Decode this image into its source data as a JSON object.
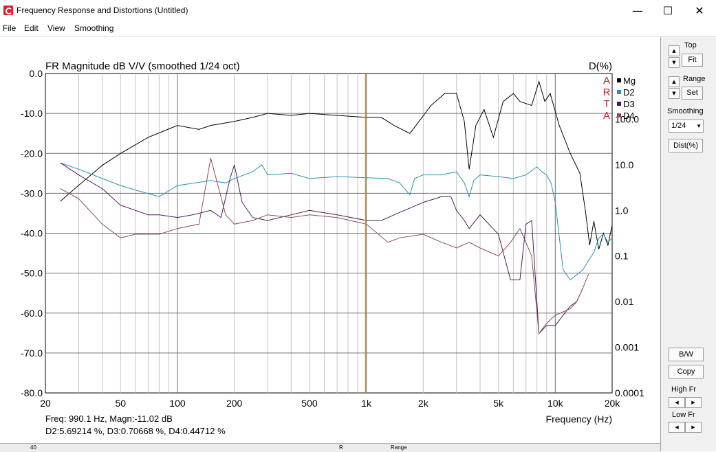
{
  "window": {
    "title": "Frequency Response and Distortions (Untitled)",
    "controls": {
      "minimize": "—",
      "maximize": "☐",
      "close": "✕"
    }
  },
  "menu": [
    "File",
    "Edit",
    "View",
    "Smoothing"
  ],
  "panel": {
    "top_label": "Top",
    "fit_label": "Fit",
    "range_label": "Range",
    "set_label": "Set",
    "smoothing_label": "Smoothing",
    "smoothing_value": "1/24",
    "dist_label": "Dist(%)",
    "bw_label": "B/W",
    "copy_label": "Copy",
    "high_fr_label": "High Fr",
    "low_fr_label": "Low Fr"
  },
  "status": {
    "line1": "Freq: 990.1 Hz, Magn:-11.02 dB",
    "line2": "D2:5.69214 %, D3:0.70668 %, D4:0.44712 %"
  },
  "bottom_strip": {
    "left": "40",
    "mid": "R",
    "right": "Range"
  },
  "colors": {
    "mg": "#000000",
    "d2": "#2a90b5",
    "d3": "#4a1a55",
    "d4": "#8a4a5a",
    "cursor": "#b8a000",
    "watermark": "#b02a2a"
  },
  "chart_data": {
    "type": "line",
    "title": "FR Magnitude dB V/V (smoothed 1/24 oct)",
    "xlabel": "Frequency (Hz)",
    "ylabel_right": "D(%)",
    "xscale": "log",
    "xlim": [
      20,
      20000
    ],
    "ylim": [
      -80,
      0
    ],
    "right_scale": "log",
    "right_lim": [
      0.0001,
      1000
    ],
    "x_ticks": [
      "20",
      "50",
      "100",
      "200",
      "500",
      "1k",
      "2k",
      "5k",
      "10k",
      "20k"
    ],
    "y_ticks": [
      "0.0",
      "-10.0",
      "-20.0",
      "-30.0",
      "-40.0",
      "-50.0",
      "-60.0",
      "-70.0",
      "-80.0"
    ],
    "right_ticks": [
      "100.0",
      "10.0",
      "1.0",
      "0.1",
      "0.01",
      "0.001",
      "0.0001"
    ],
    "watermark": [
      "A",
      "R",
      "T",
      "A"
    ],
    "cursor_freq": 990.1,
    "legend_position": "top-right",
    "series": [
      {
        "name": "Mg",
        "unit": "dB",
        "x": [
          24,
          30,
          40,
          50,
          70,
          100,
          130,
          150,
          200,
          250,
          300,
          400,
          500,
          700,
          1000,
          1200,
          1400,
          1700,
          1900,
          2200,
          2600,
          3000,
          3300,
          3500,
          3800,
          4200,
          4700,
          5300,
          6000,
          6500,
          7500,
          8200,
          8800,
          9400,
          10500,
          12000,
          13500,
          14500,
          15200,
          16000,
          17000,
          18000,
          19000,
          20000
        ],
        "values": [
          -32,
          -28,
          -23,
          -20,
          -16,
          -13,
          -14,
          -13,
          -12,
          -11,
          -10,
          -10.5,
          -10,
          -10.5,
          -11,
          -11,
          -13,
          -15,
          -12,
          -8,
          -5,
          -5,
          -12,
          -24,
          -13,
          -9,
          -16,
          -7,
          -5,
          -7,
          -8,
          -2,
          -7,
          -5,
          -13,
          -20,
          -25,
          -35,
          -43,
          -37,
          -44,
          -40,
          -43,
          -38
        ]
      },
      {
        "name": "D2",
        "unit": "%",
        "x": [
          24,
          30,
          40,
          50,
          60,
          80,
          100,
          150,
          180,
          200,
          250,
          280,
          300,
          400,
          500,
          700,
          1000,
          1300,
          1500,
          1700,
          1800,
          2000,
          2500,
          3000,
          3300,
          3500,
          3700,
          4000,
          5000,
          6000,
          7000,
          8000,
          8500,
          9000,
          9500,
          10000,
          11000,
          12000,
          14000,
          15000,
          16000,
          17000,
          18000,
          19000,
          20000
        ],
        "values": [
          11,
          8,
          5,
          3.5,
          2.8,
          2,
          3.5,
          4.5,
          4,
          5,
          7,
          10,
          6,
          6.5,
          5,
          5.5,
          5.2,
          5,
          4,
          2.2,
          5,
          6,
          6,
          7,
          4,
          2,
          4.5,
          6,
          5.5,
          5,
          6,
          9,
          7,
          6,
          4,
          1.5,
          0.05,
          0.03,
          0.05,
          0.08,
          0.12,
          0.25,
          0.3,
          0.2,
          0.25
        ]
      },
      {
        "name": "D3",
        "unit": "%",
        "x": [
          24,
          30,
          40,
          50,
          60,
          70,
          80,
          100,
          120,
          150,
          170,
          190,
          200,
          220,
          250,
          300,
          400,
          500,
          700,
          1000,
          1200,
          1500,
          2000,
          2500,
          2800,
          3000,
          3300,
          3500,
          4000,
          5000,
          5800,
          6500,
          7000,
          7500,
          8200,
          9000,
          10000,
          11000,
          12000,
          13000,
          14000
        ],
        "values": [
          11,
          6,
          3,
          1.3,
          1,
          0.8,
          0.8,
          0.7,
          0.8,
          1,
          0.7,
          5,
          10,
          1.5,
          0.7,
          0.6,
          0.8,
          1,
          0.8,
          0.6,
          0.6,
          0.9,
          1.5,
          2,
          2,
          1,
          0.6,
          0.4,
          0.8,
          0.3,
          0.03,
          0.03,
          0.5,
          0.6,
          0.002,
          0.003,
          0.003,
          0.005,
          0.008,
          0.01,
          0.02
        ]
      },
      {
        "name": "D4",
        "unit": "%",
        "x": [
          24,
          30,
          40,
          50,
          60,
          80,
          100,
          130,
          150,
          180,
          200,
          250,
          300,
          400,
          500,
          700,
          1000,
          1300,
          1500,
          2000,
          2500,
          3000,
          3500,
          4000,
          5000,
          5800,
          6500,
          7500,
          8200,
          8800,
          9400,
          10000,
          11000,
          12000,
          13000,
          14000,
          15000
        ],
        "values": [
          3,
          1.8,
          0.5,
          0.25,
          0.3,
          0.3,
          0.4,
          0.5,
          14,
          0.8,
          0.5,
          0.6,
          0.8,
          0.7,
          0.8,
          0.7,
          0.5,
          0.2,
          0.25,
          0.3,
          0.2,
          0.15,
          0.2,
          0.15,
          0.1,
          0.2,
          0.4,
          0.1,
          0.002,
          0.003,
          0.004,
          0.005,
          0.006,
          0.007,
          0.01,
          0.02,
          0.04
        ]
      }
    ]
  }
}
